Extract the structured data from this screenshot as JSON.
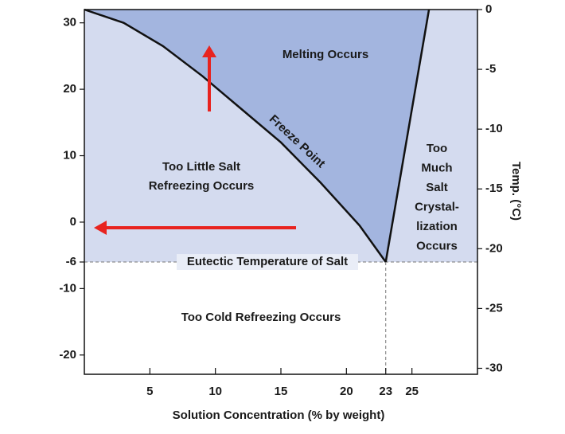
{
  "chart_data": {
    "type": "phase",
    "x_label": "Solution Concentration (% by weight)",
    "y2_label": "Temp. (°C)",
    "xlim": [
      0,
      30
    ],
    "ylim": [
      -22.9,
      32
    ],
    "y2lim": [
      -30.5,
      0
    ],
    "xticks": [
      5,
      10,
      15,
      20,
      23,
      25
    ],
    "yticks": [
      30,
      20,
      10,
      0,
      -6,
      -10,
      -20
    ],
    "y2ticks": [
      0,
      -5,
      -10,
      -15,
      -20,
      -25,
      -30
    ],
    "series": [
      {
        "name": "Freeze Point",
        "color": "#111111",
        "x": [
          0,
          3,
          6,
          9,
          12,
          15,
          18,
          21,
          23
        ],
        "values": [
          32,
          30,
          26.5,
          22,
          17,
          12,
          6,
          -0.5,
          -6
        ]
      },
      {
        "color": "#111111",
        "x": [
          23,
          26.3
        ],
        "values": [
          -6,
          32
        ]
      }
    ],
    "eutectic": {
      "label": "Eutectic Temperature of Salt",
      "value": -6,
      "x": 23
    },
    "annotations": [
      [
        "Melting Occurs"
      ],
      [
        "Too Little Salt",
        "Refreezing Occurs"
      ],
      [
        "Too",
        "Much",
        "Salt",
        "Crystal-",
        "lization",
        "Occurs"
      ],
      [
        "Too Cold Refreezing Occurs"
      ]
    ],
    "colors": {
      "melting": "#a3b5df",
      "liquid": "#d4dbef"
    }
  }
}
